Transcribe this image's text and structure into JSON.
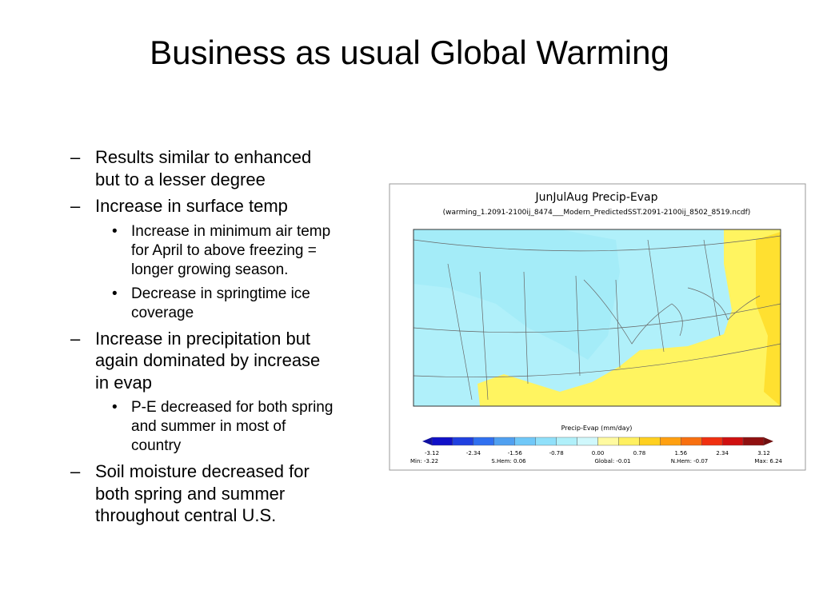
{
  "title": "Business as usual Global Warming",
  "bullets": [
    {
      "level": 1,
      "lines": [
        "Results similar to enhanced",
        "but to a lesser degree"
      ]
    },
    {
      "level": 1,
      "lines": [
        "Increase in surface temp"
      ]
    },
    {
      "level": 2,
      "lines": [
        "Increase in minimum air temp",
        "for April to above freezing =",
        "longer growing season."
      ]
    },
    {
      "level": 2,
      "lines": [
        "Decrease in springtime ice",
        "coverage"
      ]
    },
    {
      "level": 1,
      "lines": [
        "Increase in precipitation but",
        "again dominated by increase",
        "in evap"
      ]
    },
    {
      "level": 2,
      "lines": [
        "P-E decreased for both spring",
        "and summer in most of",
        "country"
      ]
    },
    {
      "level": 1,
      "lines": [
        "Soil moisture decreased for",
        "both spring and summer",
        "throughout central U.S."
      ]
    }
  ],
  "figure": {
    "title": "JunJulAug Precip-Evap",
    "subtitle": "(warming_1.2091-2100ij_8474___Modern_PredictedSST.2091-2100ij_8502_8519.ncdf)",
    "colorbar_label": "Precip-Evap (mm/day)",
    "colorbar_ticks": [
      "-3.12",
      "-2.34",
      "-1.56",
      "-0.78",
      "0.00",
      "0.78",
      "1.56",
      "2.34",
      "3.12"
    ],
    "stats": [
      "Min: -3.22",
      "S.Hem: 0.06",
      "Global: -0.01",
      "N.Hem: -0.07",
      "Max: 6.24"
    ]
  }
}
